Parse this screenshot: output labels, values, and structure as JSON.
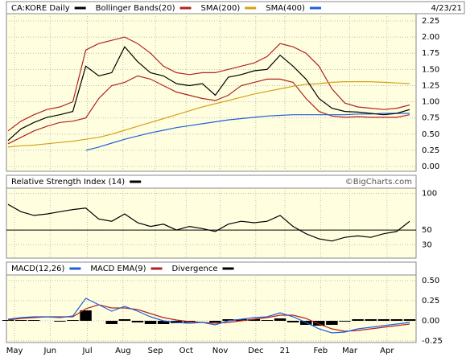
{
  "chart_data": [
    {
      "type": "line",
      "date": "4/23/21",
      "x": [
        0,
        8,
        16,
        24,
        32,
        40,
        48,
        56,
        64,
        72,
        80,
        88,
        96,
        104,
        112,
        120,
        128,
        136,
        144,
        152,
        160,
        168,
        176,
        184,
        192,
        200,
        208,
        216,
        224,
        232,
        240,
        248
      ],
      "xlim": [
        0,
        252
      ],
      "ylim": [
        0,
        2.3
      ],
      "yticks": [
        {
          "value": 0,
          "label": "0.00"
        },
        {
          "value": 0.25,
          "label": "0.25"
        },
        {
          "value": 0.5,
          "label": "0.50"
        },
        {
          "value": 0.75,
          "label": "0.75"
        },
        {
          "value": 1,
          "label": "1.00"
        },
        {
          "value": 1.25,
          "label": "1.25"
        },
        {
          "value": 1.5,
          "label": "1.50"
        },
        {
          "value": 1.75,
          "label": "1.75"
        },
        {
          "value": 2,
          "label": "2.00"
        },
        {
          "value": 2.25,
          "label": "2.25"
        }
      ],
      "series": [
        {
          "name": "CA:KORE Daily",
          "color": "#000000",
          "style": "line",
          "values": [
            0.4,
            0.58,
            0.68,
            0.76,
            0.8,
            0.85,
            1.55,
            1.4,
            1.45,
            1.85,
            1.62,
            1.45,
            1.4,
            1.28,
            1.25,
            1.28,
            1.1,
            1.38,
            1.42,
            1.48,
            1.5,
            1.72,
            1.55,
            1.35,
            1.05,
            0.9,
            0.85,
            0.84,
            0.82,
            0.8,
            0.82,
            0.88
          ]
        },
        {
          "name": "Bollinger Bands(20)",
          "color": "#b22222",
          "style": "band",
          "upper": [
            0.55,
            0.7,
            0.8,
            0.88,
            0.92,
            1.0,
            1.8,
            1.9,
            1.95,
            2.0,
            1.9,
            1.75,
            1.55,
            1.45,
            1.42,
            1.45,
            1.45,
            1.5,
            1.55,
            1.6,
            1.7,
            1.9,
            1.85,
            1.75,
            1.55,
            1.2,
            0.98,
            0.92,
            0.9,
            0.88,
            0.9,
            0.95
          ],
          "lower": [
            0.35,
            0.45,
            0.55,
            0.62,
            0.68,
            0.7,
            0.75,
            1.05,
            1.25,
            1.3,
            1.4,
            1.35,
            1.25,
            1.15,
            1.1,
            1.05,
            1.02,
            1.1,
            1.25,
            1.3,
            1.35,
            1.35,
            1.3,
            1.05,
            0.85,
            0.78,
            0.76,
            0.77,
            0.76,
            0.76,
            0.76,
            0.8
          ]
        },
        {
          "name": "SMA(200)",
          "color": "#d4a017",
          "style": "line",
          "values": [
            0.3,
            0.32,
            0.33,
            0.35,
            0.37,
            0.39,
            0.42,
            0.45,
            0.5,
            0.56,
            0.62,
            0.68,
            0.74,
            0.8,
            0.86,
            0.92,
            0.97,
            1.02,
            1.07,
            1.12,
            1.16,
            1.2,
            1.24,
            1.27,
            1.28,
            1.3,
            1.31,
            1.31,
            1.31,
            1.3,
            1.29,
            1.28
          ]
        },
        {
          "name": "SMA(400)",
          "color": "#1f5fd6",
          "style": "line",
          "values": [
            null,
            null,
            null,
            null,
            null,
            null,
            0.25,
            0.3,
            0.36,
            0.42,
            0.47,
            0.52,
            0.56,
            0.6,
            0.63,
            0.66,
            0.69,
            0.72,
            0.74,
            0.76,
            0.78,
            0.79,
            0.8,
            0.8,
            0.8,
            0.8,
            0.8,
            0.81,
            0.81,
            0.82,
            0.82,
            0.82
          ]
        }
      ]
    },
    {
      "type": "line",
      "watermark": "©BigCharts.com",
      "x": [
        0,
        8,
        16,
        24,
        32,
        40,
        48,
        56,
        64,
        72,
        80,
        88,
        96,
        104,
        112,
        120,
        128,
        136,
        144,
        152,
        160,
        168,
        176,
        184,
        192,
        200,
        208,
        216,
        224,
        232,
        240,
        248
      ],
      "xlim": [
        0,
        252
      ],
      "ylim": [
        15,
        105
      ],
      "yticks": [
        30,
        50,
        100
      ],
      "reference_line": 50,
      "series": [
        {
          "name": "Relative Strength Index (14)",
          "color": "#000000",
          "style": "line",
          "values": [
            85,
            75,
            70,
            72,
            75,
            78,
            80,
            65,
            62,
            72,
            60,
            55,
            58,
            50,
            55,
            52,
            48,
            58,
            62,
            60,
            62,
            70,
            55,
            45,
            38,
            35,
            40,
            42,
            40,
            45,
            48,
            62
          ]
        }
      ]
    },
    {
      "type": "line",
      "x": [
        0,
        8,
        16,
        24,
        32,
        40,
        48,
        56,
        64,
        72,
        80,
        88,
        96,
        104,
        112,
        120,
        128,
        136,
        144,
        152,
        160,
        168,
        176,
        184,
        192,
        200,
        208,
        216,
        224,
        232,
        240,
        248
      ],
      "xlim": [
        0,
        252
      ],
      "xticks": [
        {
          "value": 4,
          "label": "May"
        },
        {
          "value": 26,
          "label": "Jun"
        },
        {
          "value": 49,
          "label": "Jul"
        },
        {
          "value": 71,
          "label": "Aug"
        },
        {
          "value": 91,
          "label": "Sep"
        },
        {
          "value": 110,
          "label": "Oct"
        },
        {
          "value": 131,
          "label": "Nov"
        },
        {
          "value": 153,
          "label": "Dec"
        },
        {
          "value": 171,
          "label": "21"
        },
        {
          "value": 193,
          "label": "Feb"
        },
        {
          "value": 211,
          "label": "Mar"
        },
        {
          "value": 234,
          "label": "Apr"
        }
      ],
      "ylim": [
        -0.25,
        0.55
      ],
      "yticks": [
        {
          "value": -0.25,
          "label": "-0.25"
        },
        {
          "value": 0,
          "label": "0.00"
        },
        {
          "value": 0.25,
          "label": "0.25"
        },
        {
          "value": 0.5,
          "label": "0.50"
        }
      ],
      "series": [
        {
          "name": "MACD(12,26)",
          "color": "#1f5fd6",
          "style": "line",
          "values": [
            0.02,
            0.04,
            0.05,
            0.05,
            0.04,
            0.06,
            0.28,
            0.2,
            0.12,
            0.18,
            0.12,
            0.05,
            0.0,
            -0.02,
            -0.03,
            -0.02,
            -0.05,
            0.0,
            0.02,
            0.04,
            0.05,
            0.1,
            0.05,
            -0.02,
            -0.1,
            -0.15,
            -0.14,
            -0.1,
            -0.08,
            -0.06,
            -0.04,
            -0.02
          ]
        },
        {
          "name": "MACD EMA(9)",
          "color": "#b22222",
          "style": "line",
          "values": [
            0.01,
            0.03,
            0.04,
            0.05,
            0.05,
            0.05,
            0.15,
            0.2,
            0.16,
            0.16,
            0.14,
            0.09,
            0.04,
            0.01,
            -0.01,
            -0.02,
            -0.03,
            -0.02,
            0.0,
            0.02,
            0.04,
            0.07,
            0.07,
            0.03,
            -0.04,
            -0.1,
            -0.13,
            -0.12,
            -0.1,
            -0.08,
            -0.06,
            -0.04
          ]
        },
        {
          "name": "Divergence",
          "color": "#000000",
          "style": "bars",
          "values": [
            0.01,
            0.01,
            0.01,
            0.0,
            -0.01,
            0.01,
            0.13,
            0.0,
            -0.04,
            0.02,
            -0.02,
            -0.04,
            -0.04,
            -0.03,
            -0.02,
            0.0,
            -0.02,
            0.02,
            0.02,
            0.02,
            0.01,
            0.03,
            -0.02,
            -0.05,
            -0.06,
            -0.05,
            -0.01,
            0.02,
            0.02,
            0.02,
            0.02,
            0.02
          ]
        }
      ]
    }
  ]
}
